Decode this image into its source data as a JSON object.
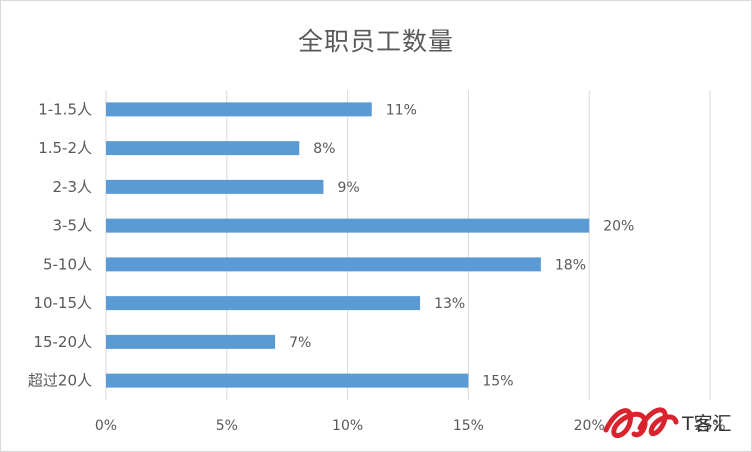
{
  "chart_data": {
    "type": "bar",
    "orientation": "horizontal",
    "title": "全职员工数量",
    "xlabel": "",
    "ylabel": "",
    "categories": [
      "1-1.5人",
      "1.5-2人",
      "2-3人",
      "3-5人",
      "5-10人",
      "10-15人",
      "15-20人",
      "超过20人"
    ],
    "values": [
      11,
      8,
      9,
      20,
      18,
      13,
      7,
      15
    ],
    "data_labels": [
      "11%",
      "8%",
      "9%",
      "20%",
      "18%",
      "13%",
      "7%",
      "15%"
    ],
    "xlim": [
      0,
      25
    ],
    "xticks": [
      0,
      5,
      10,
      15,
      20,
      25
    ],
    "xtick_labels": [
      "0%",
      "5%",
      "10%",
      "15%",
      "20%",
      "25%"
    ],
    "grid": "vertical",
    "bar_color": "#5b9bd5",
    "grid_color": "#d9d9d9",
    "text_color": "#595959"
  },
  "watermark": {
    "logo_text": "IT客汇"
  }
}
